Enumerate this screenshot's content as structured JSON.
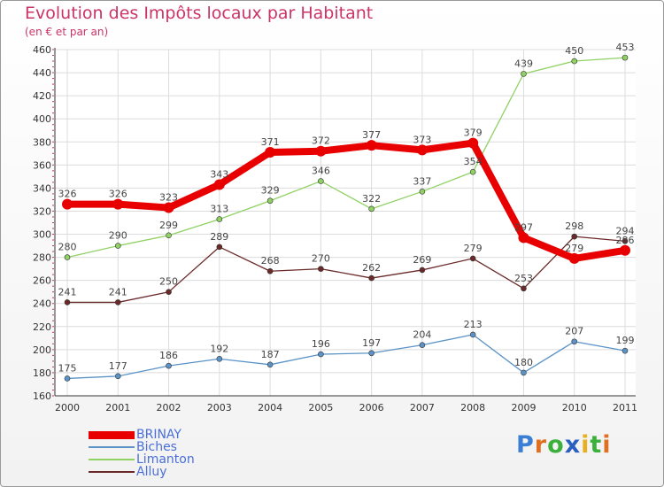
{
  "header": {
    "title": "Evolution des Impôts locaux par Habitant",
    "subtitle": "(en € et par an)"
  },
  "logo": {
    "letters": [
      "P",
      "r",
      "o",
      "x",
      "i",
      "t",
      "i"
    ],
    "colors": [
      "#3b7fd4",
      "#e07020",
      "#3bb03b",
      "#2a5fc0",
      "#e8b020",
      "#3bb03b",
      "#e07020"
    ]
  },
  "chart_data": {
    "type": "line",
    "title": "Evolution des Impôts locaux par Habitant",
    "subtitle": "(en € et par an)",
    "xlabel": "",
    "ylabel": "",
    "x": [
      "2000",
      "2001",
      "2002",
      "2003",
      "2004",
      "2005",
      "2006",
      "2007",
      "2008",
      "2009",
      "2010",
      "2011"
    ],
    "ylim": [
      160,
      460
    ],
    "yticks": [
      160,
      180,
      200,
      220,
      240,
      260,
      280,
      300,
      320,
      340,
      360,
      380,
      400,
      420,
      440,
      460
    ],
    "grid": true,
    "legend": "bottom-left",
    "series": [
      {
        "name": "BRINAY",
        "color": "#e80000",
        "emphasis": true,
        "values": [
          326,
          326,
          323,
          343,
          371,
          372,
          377,
          373,
          379,
          297,
          279,
          286
        ]
      },
      {
        "name": "Biches",
        "color": "#5b93c7",
        "emphasis": false,
        "values": [
          175,
          177,
          186,
          192,
          187,
          196,
          197,
          204,
          213,
          180,
          207,
          199
        ]
      },
      {
        "name": "Limanton",
        "color": "#8fd163",
        "emphasis": false,
        "values": [
          280,
          290,
          299,
          313,
          329,
          346,
          322,
          337,
          354,
          439,
          450,
          453
        ]
      },
      {
        "name": "Alluy",
        "color": "#6b2a2a",
        "emphasis": false,
        "values": [
          241,
          241,
          250,
          289,
          268,
          270,
          262,
          269,
          279,
          253,
          298,
          294
        ]
      }
    ]
  }
}
